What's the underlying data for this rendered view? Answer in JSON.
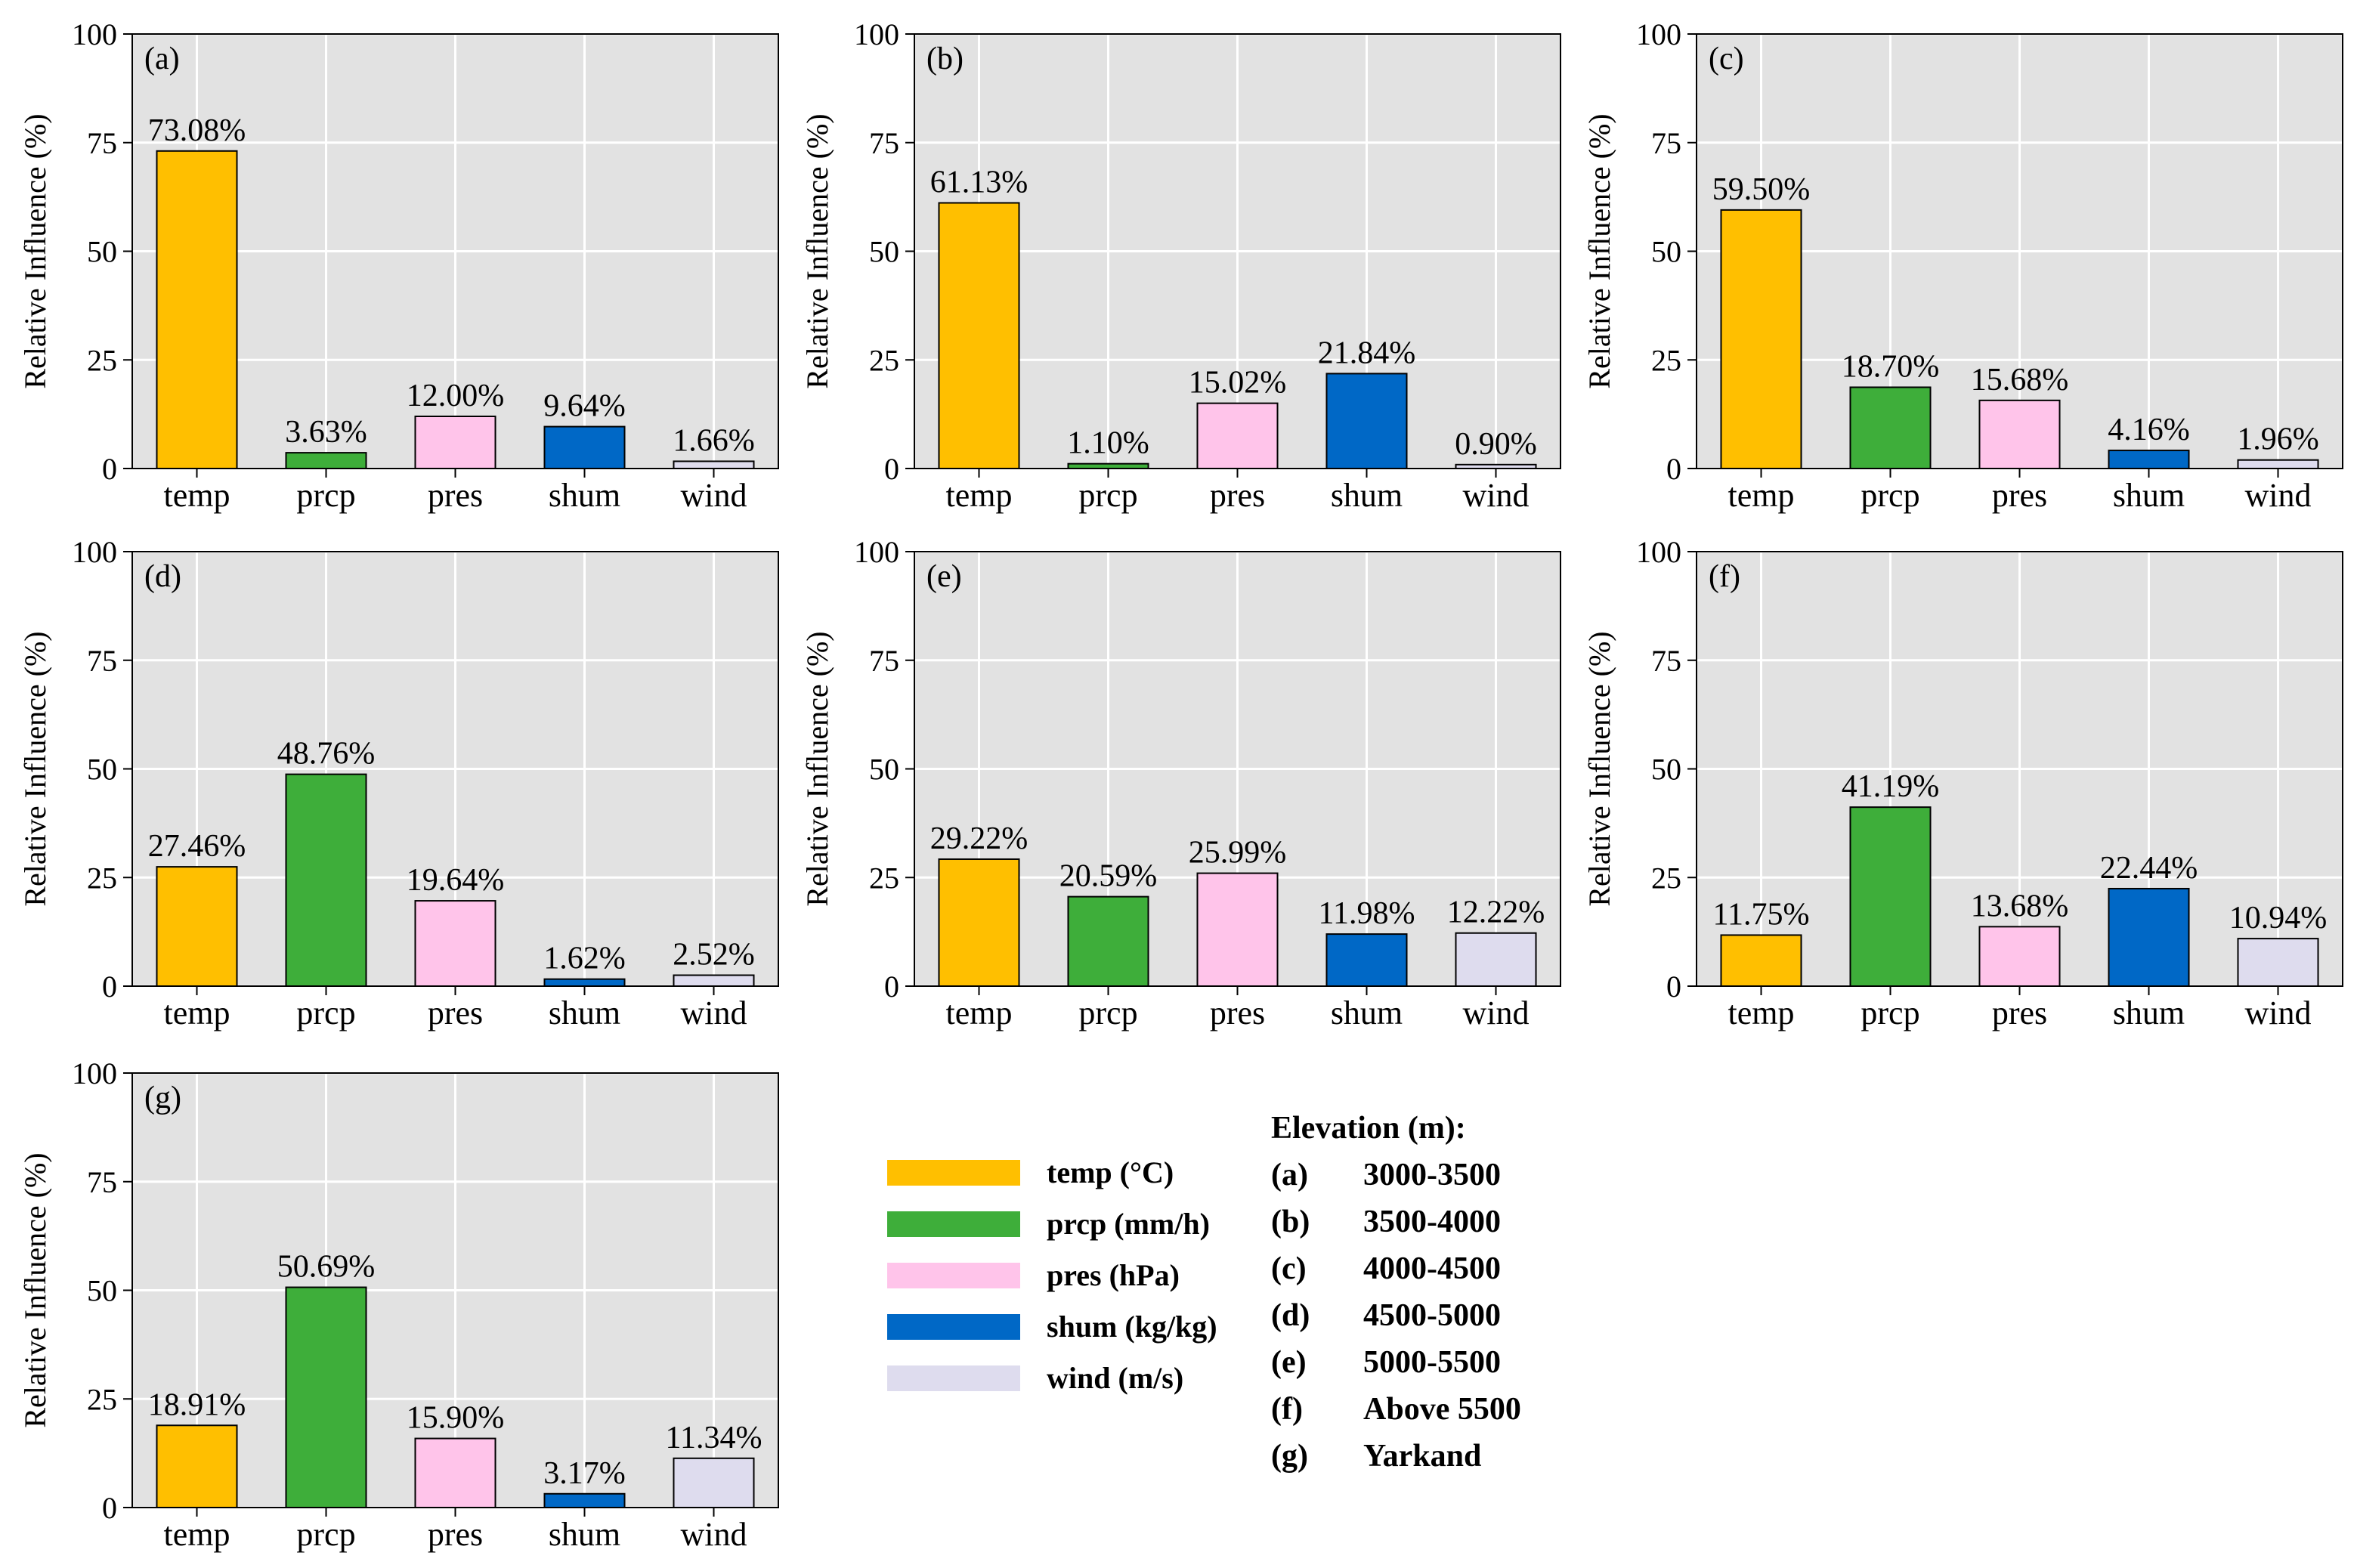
{
  "chart_data": [
    {
      "type": "bar",
      "panel_label": "(a)",
      "categories": [
        "temp",
        "prcp",
        "pres",
        "shum",
        "wind"
      ],
      "values": [
        73.08,
        3.63,
        12.0,
        9.64,
        1.66
      ],
      "data_labels": [
        "73.08%",
        "3.63%",
        "12.00%",
        "9.64%",
        "1.66%"
      ],
      "ylabel": "Relative Influence (%)",
      "ylim": [
        0,
        100
      ],
      "yticks": [
        "0",
        "25",
        "50",
        "75",
        "100"
      ],
      "grid": true
    },
    {
      "type": "bar",
      "panel_label": "(b)",
      "categories": [
        "temp",
        "prcp",
        "pres",
        "shum",
        "wind"
      ],
      "values": [
        61.13,
        1.1,
        15.02,
        21.84,
        0.9
      ],
      "data_labels": [
        "61.13%",
        "1.10%",
        "15.02%",
        "21.84%",
        "0.90%"
      ],
      "ylabel": "Relative Influence (%)",
      "ylim": [
        0,
        100
      ],
      "yticks": [
        "0",
        "25",
        "50",
        "75",
        "100"
      ],
      "grid": true
    },
    {
      "type": "bar",
      "panel_label": "(c)",
      "categories": [
        "temp",
        "prcp",
        "pres",
        "shum",
        "wind"
      ],
      "values": [
        59.5,
        18.7,
        15.68,
        4.16,
        1.96
      ],
      "data_labels": [
        "59.50%",
        "18.70%",
        "15.68%",
        "4.16%",
        "1.96%"
      ],
      "ylabel": "Relative Influence (%)",
      "ylim": [
        0,
        100
      ],
      "yticks": [
        "0",
        "25",
        "50",
        "75",
        "100"
      ],
      "grid": true
    },
    {
      "type": "bar",
      "panel_label": "(d)",
      "categories": [
        "temp",
        "prcp",
        "pres",
        "shum",
        "wind"
      ],
      "values": [
        27.46,
        48.76,
        19.64,
        1.62,
        2.52
      ],
      "data_labels": [
        "27.46%",
        "48.76%",
        "19.64%",
        "1.62%",
        "2.52%"
      ],
      "ylabel": "Relative Influence (%)",
      "ylim": [
        0,
        100
      ],
      "yticks": [
        "0",
        "25",
        "50",
        "75",
        "100"
      ],
      "grid": true
    },
    {
      "type": "bar",
      "panel_label": "(e)",
      "categories": [
        "temp",
        "prcp",
        "pres",
        "shum",
        "wind"
      ],
      "values": [
        29.22,
        20.59,
        25.99,
        11.98,
        12.22
      ],
      "data_labels": [
        "29.22%",
        "20.59%",
        "25.99%",
        "11.98%",
        "12.22%"
      ],
      "ylabel": "Relative Influence (%)",
      "ylim": [
        0,
        100
      ],
      "yticks": [
        "0",
        "25",
        "50",
        "75",
        "100"
      ],
      "grid": true
    },
    {
      "type": "bar",
      "panel_label": "(f)",
      "categories": [
        "temp",
        "prcp",
        "pres",
        "shum",
        "wind"
      ],
      "values": [
        11.75,
        41.19,
        13.68,
        22.44,
        10.94
      ],
      "data_labels": [
        "11.75%",
        "41.19%",
        "13.68%",
        "22.44%",
        "10.94%"
      ],
      "ylabel": "Relative Influence (%)",
      "ylim": [
        0,
        100
      ],
      "yticks": [
        "0",
        "25",
        "50",
        "75",
        "100"
      ],
      "grid": true
    },
    {
      "type": "bar",
      "panel_label": "(g)",
      "categories": [
        "temp",
        "prcp",
        "pres",
        "shum",
        "wind"
      ],
      "values": [
        18.91,
        50.69,
        15.9,
        3.17,
        11.34
      ],
      "data_labels": [
        "18.91%",
        "50.69%",
        "15.90%",
        "3.17%",
        "11.34%"
      ],
      "ylabel": "Relative Influence (%)",
      "ylim": [
        0,
        100
      ],
      "yticks": [
        "0",
        "25",
        "50",
        "75",
        "100"
      ],
      "grid": true
    }
  ],
  "colors": {
    "temp": "#FFBF00",
    "prcp": "#3EAE3A",
    "pres": "#FFC4EA",
    "shum": "#0068C6",
    "wind": "#DEDCEE",
    "axes_bg": "#E2E2E2",
    "grid": "#FFFFFF"
  },
  "legend": {
    "items": [
      {
        "key": "temp",
        "label": "temp (°C)"
      },
      {
        "key": "prcp",
        "label": "prcp (mm/h)"
      },
      {
        "key": "pres",
        "label": "pres (hPa)"
      },
      {
        "key": "shum",
        "label": "shum (kg/kg)"
      },
      {
        "key": "wind",
        "label": "wind (m/s)"
      }
    ]
  },
  "elevation": {
    "title": "Elevation (m):",
    "rows": [
      {
        "code": "(a)",
        "range": "3000-3500"
      },
      {
        "code": "(b)",
        "range": "3500-4000"
      },
      {
        "code": "(c)",
        "range": "4000-4500"
      },
      {
        "code": "(d)",
        "range": "4500-5000"
      },
      {
        "code": "(e)",
        "range": "5000-5500"
      },
      {
        "code": "(f)",
        "range": "Above 5500"
      },
      {
        "code": "(g)",
        "range": "Yarkand"
      }
    ]
  }
}
